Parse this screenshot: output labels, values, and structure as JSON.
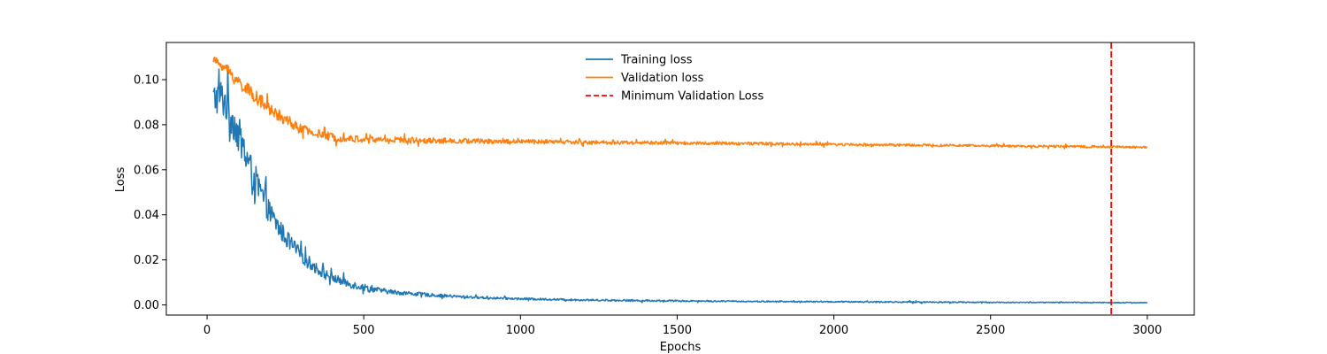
{
  "chart_data": {
    "type": "line",
    "title": "",
    "xlabel": "Epochs",
    "ylabel": "Loss",
    "xlim": [
      -130,
      3150
    ],
    "ylim": [
      -0.0045,
      0.1165
    ],
    "x_ticks": [
      0,
      500,
      1000,
      1500,
      2000,
      2500,
      3000
    ],
    "x_tick_labels": [
      "0",
      "500",
      "1000",
      "1500",
      "2000",
      "2500",
      "3000"
    ],
    "y_ticks": [
      0.0,
      0.02,
      0.04,
      0.06,
      0.08,
      0.1
    ],
    "y_tick_labels": [
      "0.00",
      "0.02",
      "0.04",
      "0.06",
      "0.08",
      "0.10"
    ],
    "grid": false,
    "legend": {
      "position": "top-center",
      "entries": [
        "Training loss",
        "Validation loss",
        "Minimum Validation Loss"
      ]
    },
    "series": [
      {
        "name": "Training loss",
        "color": "#1f77b4",
        "style": "solid",
        "x": [
          20,
          40,
          60,
          80,
          100,
          120,
          140,
          160,
          180,
          200,
          225,
          250,
          275,
          300,
          350,
          400,
          450,
          500,
          550,
          600,
          700,
          800,
          900,
          1000,
          1200,
          1400,
          1600,
          1800,
          2000,
          2200,
          2400,
          2600,
          2800,
          3000
        ],
        "y": [
          0.091,
          0.093,
          0.09,
          0.083,
          0.076,
          0.068,
          0.06,
          0.053,
          0.047,
          0.041,
          0.035,
          0.03,
          0.026,
          0.022,
          0.016,
          0.012,
          0.0095,
          0.0078,
          0.0065,
          0.0056,
          0.0045,
          0.0037,
          0.0031,
          0.0027,
          0.0022,
          0.0019,
          0.0017,
          0.0015,
          0.0014,
          0.0013,
          0.0012,
          0.0011,
          0.0011,
          0.001
        ],
        "noise": [
          0.008,
          0.008,
          0.009,
          0.008,
          0.008,
          0.008,
          0.007,
          0.007,
          0.006,
          0.005,
          0.0045,
          0.004,
          0.0035,
          0.003,
          0.0025,
          0.002,
          0.0018,
          0.0016,
          0.0012,
          0.001,
          0.0008,
          0.0006,
          0.0005,
          0.0005,
          0.0004,
          0.0004,
          0.0003,
          0.0003,
          0.0003,
          0.0003,
          0.0003,
          0.0002,
          0.0002,
          0.0002
        ]
      },
      {
        "name": "Validation loss",
        "color": "#ff7f0e",
        "style": "solid",
        "x": [
          20,
          40,
          60,
          80,
          100,
          150,
          200,
          250,
          300,
          350,
          400,
          450,
          500,
          600,
          700,
          800,
          1000,
          1200,
          1400,
          1600,
          1800,
          2000,
          2200,
          2400,
          2600,
          2800,
          3000
        ],
        "y": [
          0.109,
          0.107,
          0.105,
          0.102,
          0.099,
          0.093,
          0.087,
          0.082,
          0.078,
          0.076,
          0.0745,
          0.0738,
          0.0735,
          0.0733,
          0.073,
          0.0728,
          0.0725,
          0.0722,
          0.072,
          0.0718,
          0.0715,
          0.0712,
          0.071,
          0.0708,
          0.0705,
          0.0703,
          0.07
        ],
        "noise": [
          0.0015,
          0.002,
          0.0025,
          0.003,
          0.003,
          0.003,
          0.0028,
          0.0025,
          0.0022,
          0.002,
          0.0018,
          0.0016,
          0.0015,
          0.0014,
          0.0013,
          0.0012,
          0.001,
          0.0009,
          0.0008,
          0.0007,
          0.0007,
          0.0006,
          0.0006,
          0.0005,
          0.0005,
          0.0005,
          0.0004
        ]
      }
    ],
    "vertical_lines": [
      {
        "name": "Minimum Validation Loss",
        "x": 2885,
        "color": "#ff0000",
        "style": "dashed"
      }
    ]
  }
}
